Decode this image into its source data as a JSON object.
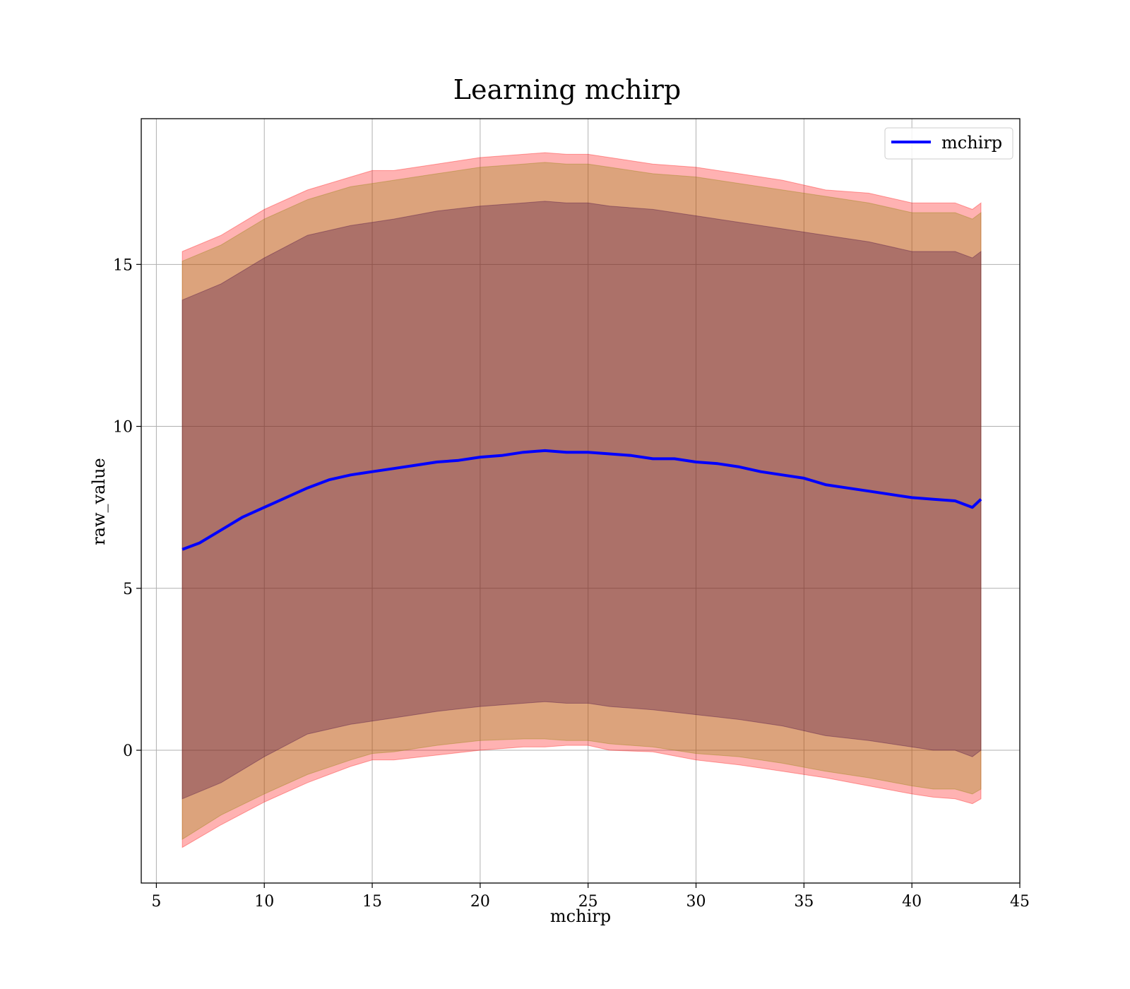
{
  "chart_data": {
    "type": "line",
    "title": "Learning mchirp",
    "xlabel": "mchirp",
    "ylabel": "raw_value",
    "xlim": [
      4.3,
      45
    ],
    "ylim": [
      -4.1,
      19.5
    ],
    "xticks": [
      5,
      10,
      15,
      20,
      25,
      30,
      35,
      40,
      45
    ],
    "yticks": [
      0,
      5,
      10,
      15
    ],
    "grid": true,
    "legend_position": "top-right",
    "colors": {
      "line": "#0000ff",
      "outer_band": "#ff0000",
      "middle_band": "#8b8000",
      "inner_band": "#400040",
      "grid": "#b0b0b0"
    },
    "series": [
      {
        "name": "mchirp",
        "x": [
          6.2,
          7,
          8,
          9,
          10,
          11,
          12,
          13,
          14,
          15,
          16,
          17,
          18,
          19,
          20,
          21,
          22,
          23,
          24,
          25,
          26,
          27,
          28,
          29,
          30,
          31,
          32,
          33,
          34,
          35,
          36,
          37,
          38,
          39,
          40,
          41,
          42,
          42.8,
          43.2
        ],
        "y": [
          6.2,
          6.4,
          6.8,
          7.2,
          7.5,
          7.8,
          8.1,
          8.35,
          8.5,
          8.6,
          8.7,
          8.8,
          8.9,
          8.95,
          9.05,
          9.1,
          9.2,
          9.25,
          9.2,
          9.2,
          9.15,
          9.1,
          9.0,
          9.0,
          8.9,
          8.85,
          8.75,
          8.6,
          8.5,
          8.4,
          8.2,
          8.1,
          8.0,
          7.9,
          7.8,
          7.75,
          7.7,
          7.5,
          7.75
        ]
      }
    ],
    "bands": [
      {
        "level": "outer",
        "x": [
          6.2,
          8,
          10,
          12,
          14,
          15,
          16,
          18,
          20,
          22,
          23,
          24,
          25,
          26,
          28,
          30,
          32,
          34,
          36,
          38,
          40,
          41,
          42,
          42.8,
          43.2
        ],
        "upper": [
          15.4,
          15.9,
          16.7,
          17.3,
          17.7,
          17.9,
          17.9,
          18.1,
          18.3,
          18.4,
          18.45,
          18.4,
          18.4,
          18.3,
          18.1,
          18.0,
          17.8,
          17.6,
          17.3,
          17.2,
          16.9,
          16.9,
          16.9,
          16.7,
          16.9
        ],
        "lower": [
          -3.0,
          -2.3,
          -1.6,
          -1.0,
          -0.5,
          -0.3,
          -0.3,
          -0.15,
          0.0,
          0.1,
          0.1,
          0.15,
          0.15,
          0.0,
          -0.05,
          -0.3,
          -0.45,
          -0.65,
          -0.85,
          -1.1,
          -1.35,
          -1.45,
          -1.5,
          -1.65,
          -1.5
        ]
      },
      {
        "level": "middle",
        "x": [
          6.2,
          8,
          10,
          12,
          14,
          15,
          16,
          18,
          20,
          22,
          23,
          24,
          25,
          26,
          28,
          30,
          32,
          34,
          36,
          38,
          40,
          41,
          42,
          42.8,
          43.2
        ],
        "upper": [
          15.1,
          15.6,
          16.4,
          17.0,
          17.4,
          17.5,
          17.6,
          17.8,
          18.0,
          18.1,
          18.15,
          18.1,
          18.1,
          18.0,
          17.8,
          17.7,
          17.5,
          17.3,
          17.1,
          16.9,
          16.6,
          16.6,
          16.6,
          16.4,
          16.6
        ],
        "lower": [
          -2.75,
          -2.0,
          -1.35,
          -0.75,
          -0.3,
          -0.1,
          -0.05,
          0.15,
          0.3,
          0.35,
          0.35,
          0.3,
          0.3,
          0.2,
          0.1,
          -0.1,
          -0.2,
          -0.4,
          -0.65,
          -0.85,
          -1.1,
          -1.2,
          -1.2,
          -1.35,
          -1.2
        ]
      },
      {
        "level": "inner",
        "x": [
          6.2,
          8,
          10,
          12,
          14,
          15,
          16,
          18,
          20,
          22,
          23,
          24,
          25,
          26,
          28,
          30,
          32,
          34,
          36,
          38,
          40,
          41,
          42,
          42.8,
          43.2
        ],
        "upper": [
          13.9,
          14.4,
          15.2,
          15.9,
          16.2,
          16.3,
          16.4,
          16.65,
          16.8,
          16.9,
          16.95,
          16.9,
          16.9,
          16.8,
          16.7,
          16.5,
          16.3,
          16.1,
          15.9,
          15.7,
          15.4,
          15.4,
          15.4,
          15.2,
          15.4
        ],
        "lower": [
          -1.5,
          -1.0,
          -0.2,
          0.5,
          0.8,
          0.9,
          1.0,
          1.2,
          1.35,
          1.45,
          1.5,
          1.45,
          1.45,
          1.35,
          1.25,
          1.1,
          0.95,
          0.75,
          0.45,
          0.3,
          0.1,
          0.0,
          0.0,
          -0.2,
          0.0
        ]
      }
    ]
  }
}
